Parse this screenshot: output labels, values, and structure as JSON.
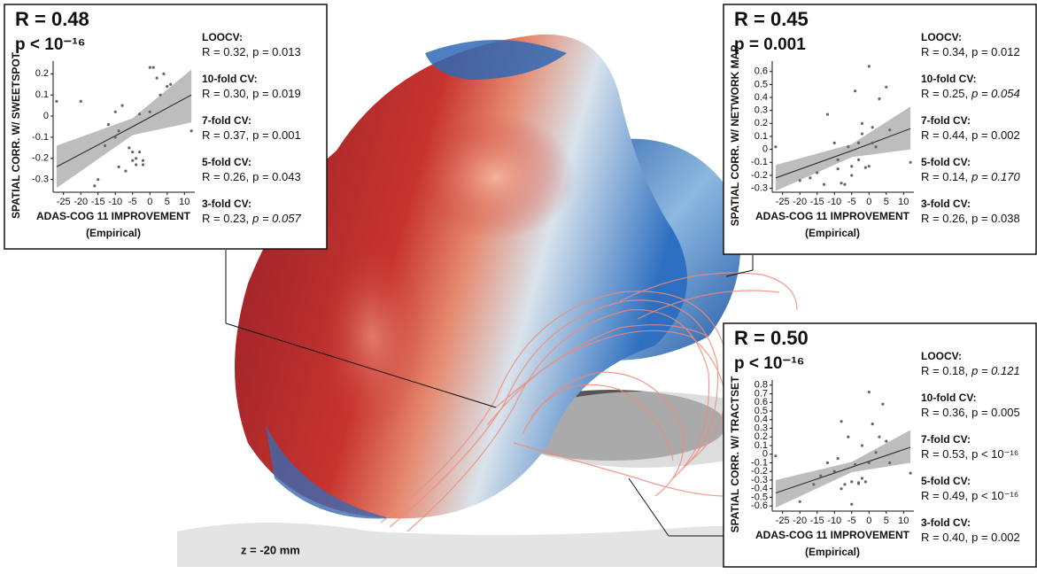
{
  "chart_data": [
    {
      "type": "scatter",
      "title": "R = 0.48",
      "subtitle": "p < 10⁻¹⁶",
      "y_label": "SPATIAL CORR. W/ SWEETSPOT",
      "x_label": "ADAS-COG 11 IMPROVEMENT",
      "x_label_2": "(Empirical)",
      "x": [
        -27,
        -20,
        -16,
        -15,
        -13,
        -12,
        -10,
        -10,
        -9,
        -8,
        -7,
        -6,
        -5,
        -5,
        -4,
        -4,
        -3,
        -3,
        -2,
        -2,
        0,
        0,
        1,
        2,
        3,
        4,
        5,
        6,
        12,
        -9
      ],
      "y": [
        0.07,
        0.07,
        -0.33,
        -0.3,
        -0.14,
        -0.04,
        0.02,
        -0.1,
        -0.07,
        0.05,
        -0.26,
        -0.15,
        -0.17,
        -0.21,
        -0.2,
        -0.23,
        -0.17,
        0.01,
        -0.21,
        -0.23,
        0.02,
        0.23,
        0.23,
        0.18,
        0.1,
        0.2,
        0.14,
        0.15,
        -0.07,
        -0.24
      ],
      "color": "#666666",
      "xlim": [
        -28,
        13
      ],
      "xticks": [
        -25,
        -20,
        -15,
        -10,
        -5,
        0,
        5,
        10
      ],
      "ylim": [
        -0.36,
        0.26
      ],
      "yticks": [
        -0.3,
        -0.2,
        -0.1,
        0,
        0.1,
        0.2
      ],
      "fit": {
        "x": [
          -27,
          -5,
          12
        ],
        "y": [
          -0.24,
          -0.05,
          0.1
        ],
        "lower": [
          -0.34,
          -0.09,
          -0.03
        ],
        "upper": [
          -0.14,
          -0.01,
          0.22
        ],
        "color": "#222222",
        "band_color": "#bdbdbd"
      },
      "cv": [
        {
          "name": "LOOCV:",
          "r": "R = 0.32,",
          "p": "p = 0.013",
          "italic": false
        },
        {
          "name": "10-fold CV:",
          "r": "R = 0.30,",
          "p": "p = 0.019",
          "italic": false
        },
        {
          "name": "7-fold CV:",
          "r": "R = 0.37,",
          "p": "p = 0.001",
          "italic": false
        },
        {
          "name": "5-fold CV:",
          "r": "R = 0.26,",
          "p": "p = 0.043",
          "italic": false
        },
        {
          "name": "3-fold CV:",
          "r": "R = 0.23,",
          "p": "p = 0.057",
          "italic": true
        }
      ]
    },
    {
      "type": "scatter",
      "title": "R = 0.45",
      "subtitle": "p = 0.001",
      "y_label": "SPATIAL CORR. W/ NETWORK MAP",
      "x_label": "ADAS-COG 11 IMPROVEMENT",
      "x_label_2": "(Empirical)",
      "x": [
        -27,
        -20,
        -17,
        -15,
        -13,
        -12,
        -10,
        -9,
        -8,
        -7,
        -6,
        -5,
        -5,
        -4,
        -3,
        -3,
        -2,
        -1,
        0,
        0,
        1,
        1,
        2,
        3,
        5,
        6,
        12,
        -9,
        -2
      ],
      "y": [
        0.02,
        -0.24,
        -0.22,
        -0.18,
        -0.27,
        0.27,
        0.05,
        -0.15,
        -0.26,
        -0.27,
        0.02,
        -0.2,
        -0.13,
        0.45,
        -0.08,
        0.05,
        0.12,
        -0.14,
        -0.13,
        0.64,
        0.17,
        0.05,
        0.02,
        0.39,
        0.48,
        0.15,
        -0.1,
        -0.08,
        0.2
      ],
      "color": "#666666",
      "xlim": [
        -28,
        13
      ],
      "xticks": [
        -25,
        -20,
        -15,
        -10,
        -5,
        0,
        5,
        10
      ],
      "ylim": [
        -0.33,
        0.68
      ],
      "yticks": [
        -0.3,
        -0.2,
        -0.1,
        0,
        0.1,
        0.2,
        0.3,
        0.4,
        0.5,
        0.6
      ],
      "fit": {
        "x": [
          -27,
          -5,
          12
        ],
        "y": [
          -0.22,
          -0.01,
          0.16
        ],
        "lower": [
          -0.32,
          -0.06,
          0.0
        ],
        "upper": [
          -0.12,
          0.04,
          0.33
        ],
        "color": "#222222",
        "band_color": "#bdbdbd"
      },
      "cv": [
        {
          "name": "LOOCV:",
          "r": "R = 0.34,",
          "p": "p = 0.012",
          "italic": false
        },
        {
          "name": "10-fold CV:",
          "r": "R = 0.25,",
          "p": "p = 0.054",
          "italic": true
        },
        {
          "name": "7-fold CV:",
          "r": "R = 0.44,",
          "p": "p = 0.002",
          "italic": false
        },
        {
          "name": "5-fold CV:",
          "r": "R = 0.14,",
          "p": "p = 0.170",
          "italic": true
        },
        {
          "name": "3-fold CV:",
          "r": "R = 0.26,",
          "p": "p = 0.038",
          "italic": false
        }
      ]
    },
    {
      "type": "scatter",
      "title": "R = 0.50",
      "subtitle": "p < 10⁻¹⁶",
      "y_label": "SPATIAL CORR. W/ TRACTSET",
      "x_label": "ADAS-COG 11 IMPROVEMENT",
      "x_label_2": "(Empirical)",
      "x": [
        -27,
        -20,
        -16,
        -14,
        -12,
        -10,
        -9,
        -8,
        -7,
        -6,
        -5,
        -5,
        -4,
        -3,
        -2,
        -1,
        0,
        0,
        1,
        2,
        3,
        4,
        5,
        6,
        12,
        -3,
        -2,
        -8
      ],
      "y": [
        -0.02,
        -0.55,
        -0.35,
        -0.25,
        -0.1,
        -0.2,
        -0.05,
        -0.4,
        -0.35,
        0.2,
        -0.32,
        -0.58,
        -0.12,
        -0.34,
        0.1,
        -0.32,
        0.72,
        -0.1,
        0.35,
        0.02,
        0.2,
        0.58,
        0.15,
        -0.1,
        -0.22,
        -0.33,
        -0.28,
        0.38
      ],
      "color": "#666666",
      "xlim": [
        -28,
        13
      ],
      "xticks": [
        -25,
        -20,
        -15,
        -10,
        -5,
        0,
        5,
        10
      ],
      "ylim": [
        -0.66,
        0.86
      ],
      "yticks": [
        -0.6,
        -0.5,
        -0.4,
        -0.3,
        -0.2,
        -0.1,
        0,
        0.1,
        0.2,
        0.3,
        0.4,
        0.5,
        0.6,
        0.7,
        0.8
      ],
      "fit": {
        "x": [
          -27,
          -5,
          12
        ],
        "y": [
          -0.45,
          -0.15,
          0.08
        ],
        "lower": [
          -0.62,
          -0.21,
          -0.1
        ],
        "upper": [
          -0.3,
          -0.09,
          0.28
        ],
        "color": "#222222",
        "band_color": "#bdbdbd"
      },
      "cv": [
        {
          "name": "LOOCV:",
          "r": "R = 0.18,",
          "p": "p = 0.121",
          "italic": true
        },
        {
          "name": "10-fold CV:",
          "r": "R = 0.36,",
          "p": "p = 0.005",
          "italic": false
        },
        {
          "name": "7-fold CV:",
          "r": "R = 0.53,",
          "p": "p < 10⁻¹⁶",
          "italic": false
        },
        {
          "name": "5-fold CV:",
          "r": "R = 0.49,",
          "p": "p < 10⁻¹⁶",
          "italic": false
        },
        {
          "name": "3-fold CV:",
          "r": "R = 0.40,",
          "p": "p = 0.002",
          "italic": false
        }
      ]
    }
  ],
  "slice_label": "z = -20 mm"
}
